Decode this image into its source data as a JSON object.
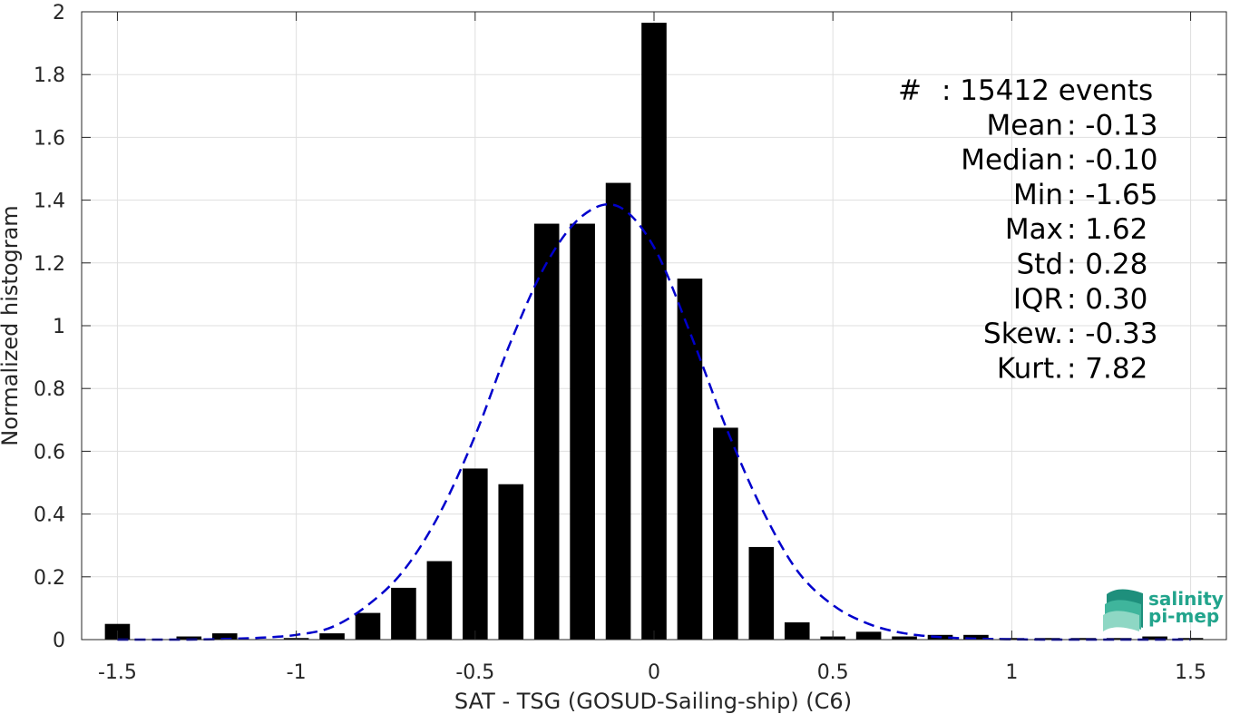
{
  "chart_data": {
    "type": "bar",
    "xlabel": "SAT - TSG (GOSUD-Sailing-ship) (C6)",
    "ylabel": "Normalized histogram",
    "xlim": [
      -1.6,
      1.6
    ],
    "ylim": [
      0,
      2
    ],
    "xticks": [
      -1.5,
      -1,
      -0.5,
      0,
      0.5,
      1,
      1.5
    ],
    "xtick_labels": [
      "-1.5",
      "-1",
      "-0.5",
      "0",
      "0.5",
      "1",
      "1.5"
    ],
    "yticks": [
      0,
      0.2,
      0.4,
      0.6,
      0.8,
      1,
      1.2,
      1.4,
      1.6,
      1.8,
      2
    ],
    "ytick_labels": [
      "0",
      "0.2",
      "0.4",
      "0.6",
      "0.8",
      "1",
      "1.2",
      "1.4",
      "1.6",
      "1.8",
      "2"
    ],
    "grid": true,
    "bar_width": 0.07,
    "bar_color": "#000000",
    "series": [
      {
        "x": [
          -1.5,
          -1.4,
          -1.3,
          -1.2,
          -1.1,
          -1.0,
          -0.9,
          -0.8,
          -0.7,
          -0.6,
          -0.5,
          -0.4,
          -0.3,
          -0.2,
          -0.1,
          0.0,
          0.1,
          0.2,
          0.3,
          0.4,
          0.5,
          0.6,
          0.7,
          0.8,
          0.9,
          1.0,
          1.1,
          1.2,
          1.3,
          1.4,
          1.5
        ],
        "values": [
          0.05,
          0.0,
          0.01,
          0.02,
          0.0,
          0.005,
          0.02,
          0.085,
          0.165,
          0.25,
          0.545,
          0.495,
          1.325,
          1.325,
          1.455,
          1.965,
          1.15,
          0.675,
          0.295,
          0.055,
          0.01,
          0.025,
          0.01,
          0.015,
          0.015,
          0.005,
          0.005,
          0.005,
          0.005,
          0.01,
          0.005
        ]
      }
    ],
    "fit_curve": {
      "style": "dashed",
      "color": "#0000cc",
      "x": [
        -1.5,
        -1.4,
        -1.3,
        -1.2,
        -1.1,
        -1.0,
        -0.9,
        -0.8,
        -0.7,
        -0.6,
        -0.5,
        -0.4,
        -0.3,
        -0.2,
        -0.1,
        0.0,
        0.1,
        0.2,
        0.3,
        0.4,
        0.5,
        0.6,
        0.7,
        0.8,
        0.9,
        1.0,
        1.1,
        1.2,
        1.3,
        1.4,
        1.5
      ],
      "y": [
        0.0,
        0.0,
        0.0,
        0.002,
        0.006,
        0.015,
        0.04,
        0.11,
        0.22,
        0.4,
        0.65,
        0.95,
        1.2,
        1.35,
        1.38,
        1.25,
        0.98,
        0.68,
        0.42,
        0.22,
        0.11,
        0.05,
        0.02,
        0.008,
        0.003,
        0.001,
        0.0,
        0.0,
        0.0,
        0.0,
        0.0
      ]
    },
    "annotation_lines": [
      "#  : 15412 events",
      "Mean : -0.13",
      "Median : -0.10",
      "Min : -1.65",
      "Max : 1.62",
      "Std : 0.28",
      "IQR : 0.30",
      "Skew. : -0.33",
      "Kurt. : 7.82"
    ]
  },
  "logo": {
    "line1": "salinity",
    "line2": "pi-mep",
    "color": "#22a48c"
  }
}
